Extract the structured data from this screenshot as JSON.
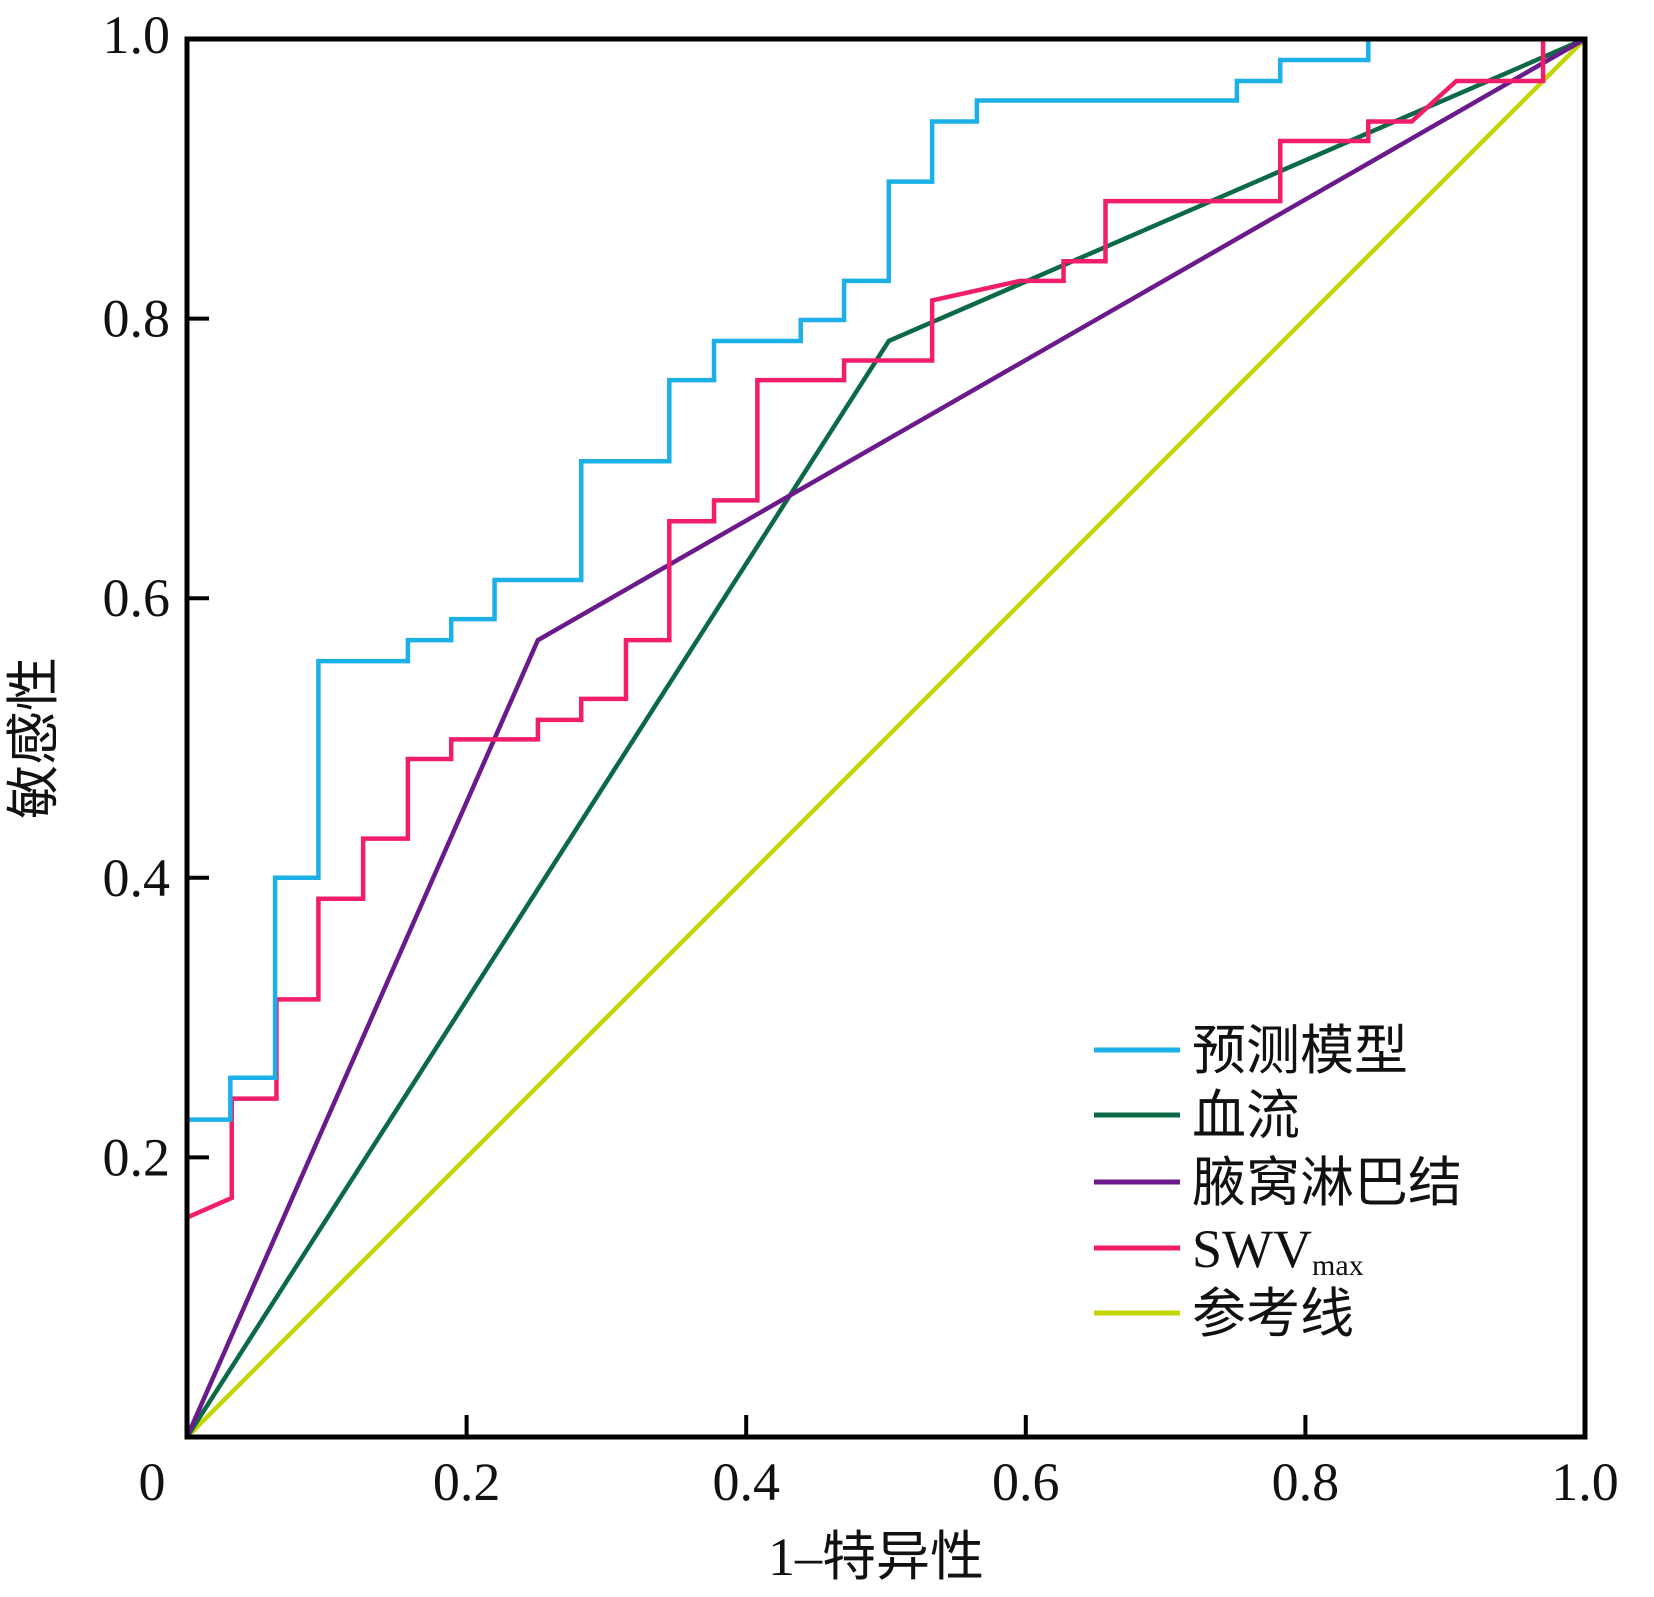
{
  "chart_data": {
    "type": "line",
    "title": "",
    "xlabel": "1–特异性",
    "ylabel": "敏感性",
    "xlim": [
      0,
      1
    ],
    "ylim": [
      0,
      1
    ],
    "x_ticks": [
      "0",
      "0.2",
      "0.4",
      "0.6",
      "0.8",
      "1.0"
    ],
    "y_ticks": [
      "0.2",
      "0.4",
      "0.6",
      "0.8",
      "1.0"
    ],
    "grid": false,
    "legend_position": "bottom-right",
    "series": [
      {
        "name": "预测模型",
        "color": "#1cb0e6",
        "points": [
          [
            0,
            0.227
          ],
          [
            0.031,
            0.227
          ],
          [
            0.031,
            0.257
          ],
          [
            0.063,
            0.257
          ],
          [
            0.063,
            0.4
          ],
          [
            0.094,
            0.4
          ],
          [
            0.094,
            0.555
          ],
          [
            0.158,
            0.555
          ],
          [
            0.158,
            0.57
          ],
          [
            0.189,
            0.57
          ],
          [
            0.189,
            0.585
          ],
          [
            0.22,
            0.585
          ],
          [
            0.22,
            0.613
          ],
          [
            0.282,
            0.613
          ],
          [
            0.282,
            0.698
          ],
          [
            0.345,
            0.698
          ],
          [
            0.345,
            0.756
          ],
          [
            0.377,
            0.756
          ],
          [
            0.377,
            0.784
          ],
          [
            0.439,
            0.784
          ],
          [
            0.439,
            0.799
          ],
          [
            0.47,
            0.799
          ],
          [
            0.47,
            0.827
          ],
          [
            0.502,
            0.827
          ],
          [
            0.502,
            0.898
          ],
          [
            0.533,
            0.898
          ],
          [
            0.533,
            0.941
          ],
          [
            0.565,
            0.941
          ],
          [
            0.565,
            0.956
          ],
          [
            0.751,
            0.956
          ],
          [
            0.751,
            0.97
          ],
          [
            0.782,
            0.97
          ],
          [
            0.782,
            0.985
          ],
          [
            0.845,
            0.985
          ],
          [
            0.845,
            1.0
          ],
          [
            1.0,
            1.0
          ]
        ]
      },
      {
        "name": "血流",
        "color": "#0b6a45",
        "points": [
          [
            0,
            0
          ],
          [
            0.502,
            0.784
          ],
          [
            1,
            1
          ]
        ]
      },
      {
        "name": "腋窝淋巴结",
        "color": "#6b1a8c",
        "points": [
          [
            0,
            0
          ],
          [
            0.251,
            0.57
          ],
          [
            1,
            1
          ]
        ]
      },
      {
        "name": "SWVmax",
        "name_main": "SWV",
        "name_sub": "max",
        "color": "#f21d6b",
        "points": [
          [
            0,
            0.157
          ],
          [
            0.032,
            0.171
          ],
          [
            0.032,
            0.242
          ],
          [
            0.064,
            0.242
          ],
          [
            0.064,
            0.313
          ],
          [
            0.094,
            0.313
          ],
          [
            0.094,
            0.385
          ],
          [
            0.126,
            0.385
          ],
          [
            0.126,
            0.428
          ],
          [
            0.158,
            0.428
          ],
          [
            0.158,
            0.485
          ],
          [
            0.189,
            0.485
          ],
          [
            0.189,
            0.499
          ],
          [
            0.251,
            0.499
          ],
          [
            0.251,
            0.513
          ],
          [
            0.282,
            0.513
          ],
          [
            0.282,
            0.528
          ],
          [
            0.314,
            0.528
          ],
          [
            0.314,
            0.57
          ],
          [
            0.345,
            0.57
          ],
          [
            0.345,
            0.655
          ],
          [
            0.377,
            0.655
          ],
          [
            0.377,
            0.67
          ],
          [
            0.408,
            0.67
          ],
          [
            0.408,
            0.756
          ],
          [
            0.47,
            0.756
          ],
          [
            0.47,
            0.77
          ],
          [
            0.533,
            0.77
          ],
          [
            0.533,
            0.813
          ],
          [
            0.596,
            0.827
          ],
          [
            0.627,
            0.827
          ],
          [
            0.627,
            0.841
          ],
          [
            0.657,
            0.841
          ],
          [
            0.657,
            0.884
          ],
          [
            0.782,
            0.884
          ],
          [
            0.782,
            0.927
          ],
          [
            0.845,
            0.927
          ],
          [
            0.845,
            0.941
          ],
          [
            0.876,
            0.941
          ],
          [
            0.908,
            0.97
          ],
          [
            0.97,
            0.97
          ],
          [
            0.97,
            1.0
          ],
          [
            1.0,
            1.0
          ]
        ]
      },
      {
        "name": "参考线",
        "color": "#c3d600",
        "points": [
          [
            0,
            0
          ],
          [
            1,
            1
          ]
        ]
      }
    ]
  }
}
